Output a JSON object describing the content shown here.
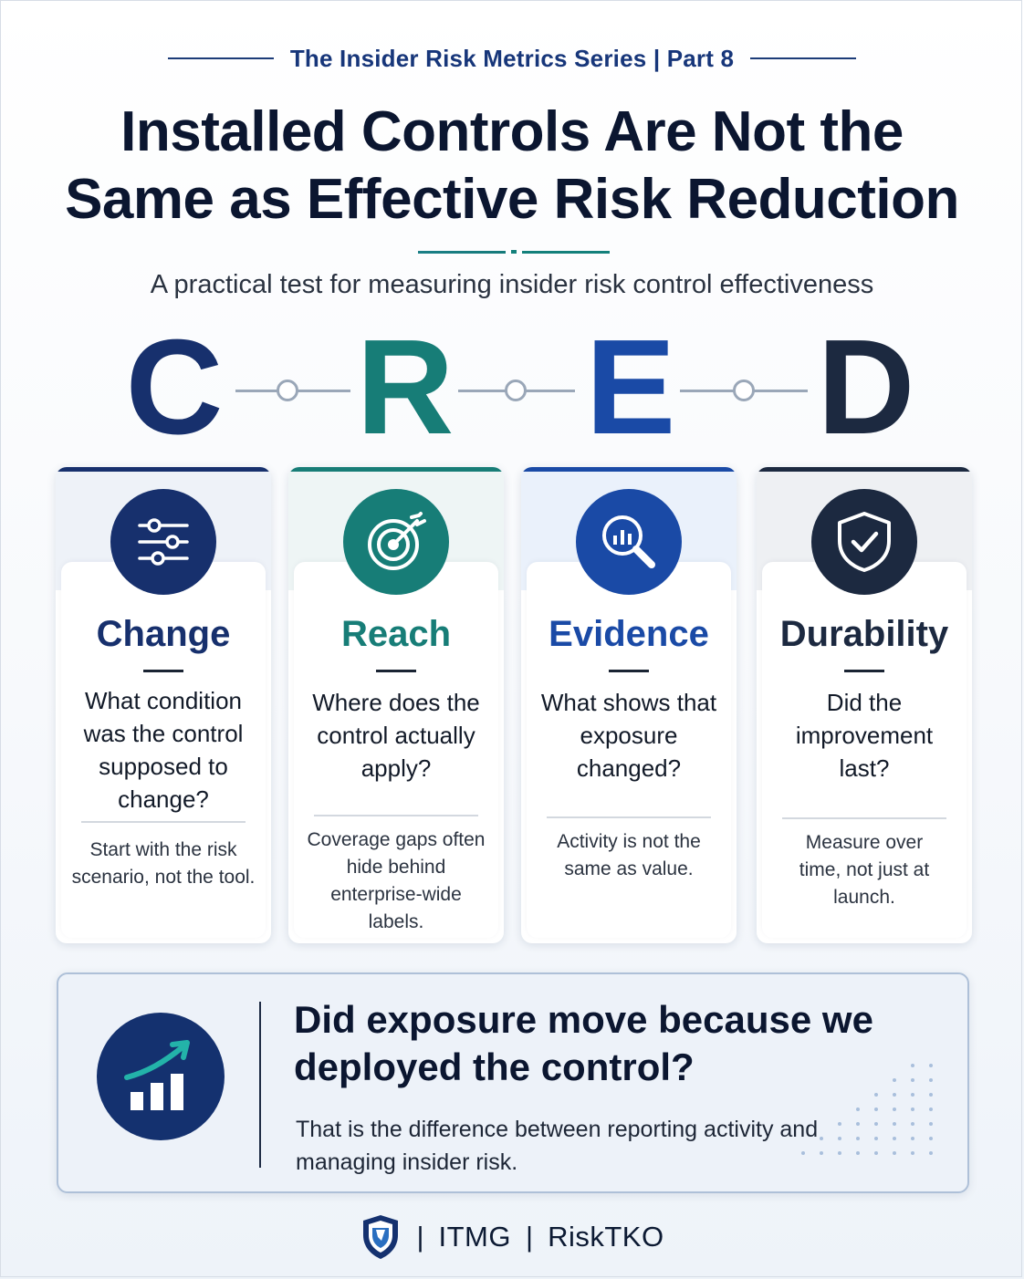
{
  "header": {
    "series": "The  Insider Risk Metrics Series | Part 8",
    "title_line1": "Installed Controls Are Not the",
    "title_line2": "Same as Effective Risk Reduction",
    "subtitle": "A practical test for measuring insider risk control effectiveness"
  },
  "acronym": {
    "letters": [
      "C",
      "R",
      "E",
      "D"
    ]
  },
  "cards": [
    {
      "icon": "sliders-icon",
      "title": "Change",
      "question": "What condition was the control supposed to change?",
      "note": "Start with the risk scenario, not the tool.",
      "color": "#17306d"
    },
    {
      "icon": "target-icon",
      "title": "Reach",
      "question": "Where does the control actually apply?",
      "note": "Coverage gaps often hide behind enterprise-wide labels.",
      "color": "#177d77"
    },
    {
      "icon": "magnifier-chart-icon",
      "title": "Evidence",
      "question": "What shows that exposure changed?",
      "note": "Activity is not the same as value.",
      "color": "#1a4aa6"
    },
    {
      "icon": "shield-check-icon",
      "title": "Durability",
      "question": "Did the improvement last?",
      "note": "Measure over time, not just at launch.",
      "color": "#1c2940"
    }
  ],
  "callout": {
    "icon": "growth-chart-icon",
    "title": "Did exposure move because we deployed the control?",
    "text": "That is the difference between reporting activity and managing insider risk."
  },
  "footer": {
    "logo": "shield-logo",
    "brand1": "ITMG",
    "brand2": "RiskTKO"
  }
}
